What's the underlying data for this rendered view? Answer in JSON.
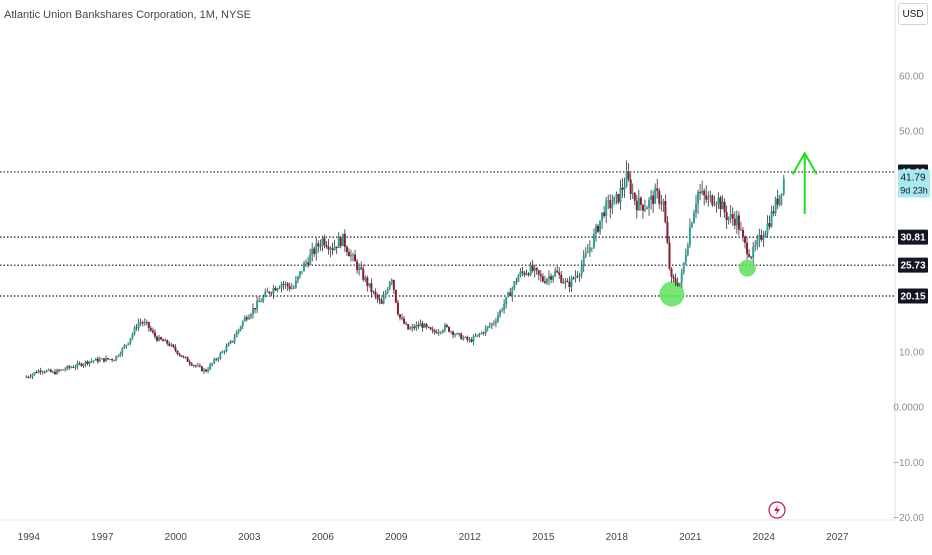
{
  "header": {
    "symbol_title": "Atlantic Union Bankshares Corporation, 1M, NYSE",
    "currency": "USD"
  },
  "chart_data": {
    "type": "candlestick",
    "title": "Atlantic Union Bankshares Corporation, 1M, NYSE",
    "x_ticks": [
      "1994",
      "1997",
      "2000",
      "2003",
      "2006",
      "2009",
      "2012",
      "2015",
      "2018",
      "2021",
      "2024",
      "2027"
    ],
    "x_range": [
      1993.0,
      2029.5
    ],
    "y_ticks": [
      60.0,
      50.0,
      10.0,
      0.0,
      -10.0,
      -20.0
    ],
    "y_tick_labels": [
      "60.00",
      "50.00",
      "10.00",
      "0.0000",
      "−10.00",
      "−20.00"
    ],
    "y_range": [
      -20.5,
      70.0
    ],
    "y_scale": "linear",
    "grid": false,
    "up_color": "#26a69a",
    "down_color": "#8b1a2b",
    "wick_color": "#333333",
    "key_levels": [
      {
        "label": "42.62",
        "value": 42.62
      },
      {
        "label": "30.81",
        "value": 30.81
      },
      {
        "label": "25.73",
        "value": 25.73
      },
      {
        "label": "20.15",
        "value": 20.15
      }
    ],
    "current_price": {
      "label": "41.79",
      "value": 41.79,
      "countdown": "9d 23h"
    },
    "highlight_circles": [
      {
        "x": 2020.25,
        "y": 20.5,
        "color": "#5de25d"
      },
      {
        "x": 2023.33,
        "y": 25.2,
        "color": "#5de25d"
      }
    ],
    "annotation_arrow": {
      "x": 2025.67,
      "from_y": 35.0,
      "to_y": 46.0,
      "color": "#22dd22"
    },
    "price_path": [
      {
        "x": 1993.9,
        "y": 5.5
      },
      {
        "x": 1994.5,
        "y": 6.8
      },
      {
        "x": 1995.0,
        "y": 6.2
      },
      {
        "x": 1995.5,
        "y": 7.0
      },
      {
        "x": 1996.0,
        "y": 7.6
      },
      {
        "x": 1996.5,
        "y": 8.4
      },
      {
        "x": 1997.0,
        "y": 8.6
      },
      {
        "x": 1997.5,
        "y": 8.8
      },
      {
        "x": 1998.0,
        "y": 11.5
      },
      {
        "x": 1998.5,
        "y": 15.5
      },
      {
        "x": 1998.8,
        "y": 15.0
      },
      {
        "x": 1999.2,
        "y": 12.5
      },
      {
        "x": 1999.7,
        "y": 11.5
      },
      {
        "x": 2000.3,
        "y": 9.0
      },
      {
        "x": 2000.8,
        "y": 7.5
      },
      {
        "x": 2001.2,
        "y": 6.5
      },
      {
        "x": 2001.8,
        "y": 9.5
      },
      {
        "x": 2002.3,
        "y": 12.0
      },
      {
        "x": 2002.8,
        "y": 16.0
      },
      {
        "x": 2003.3,
        "y": 18.5
      },
      {
        "x": 2003.8,
        "y": 21.0
      },
      {
        "x": 2004.3,
        "y": 22.5
      },
      {
        "x": 2004.8,
        "y": 21.5
      },
      {
        "x": 2005.2,
        "y": 25.5
      },
      {
        "x": 2005.6,
        "y": 28.0
      },
      {
        "x": 2006.0,
        "y": 30.5
      },
      {
        "x": 2006.4,
        "y": 29.0
      },
      {
        "x": 2006.8,
        "y": 30.5
      },
      {
        "x": 2007.2,
        "y": 27.0
      },
      {
        "x": 2007.6,
        "y": 24.0
      },
      {
        "x": 2008.0,
        "y": 21.0
      },
      {
        "x": 2008.4,
        "y": 18.5
      },
      {
        "x": 2008.8,
        "y": 24.0
      },
      {
        "x": 2009.1,
        "y": 16.5
      },
      {
        "x": 2009.5,
        "y": 14.0
      },
      {
        "x": 2010.0,
        "y": 15.0
      },
      {
        "x": 2010.5,
        "y": 13.5
      },
      {
        "x": 2011.0,
        "y": 14.5
      },
      {
        "x": 2011.5,
        "y": 13.0
      },
      {
        "x": 2012.0,
        "y": 12.0
      },
      {
        "x": 2012.5,
        "y": 13.5
      },
      {
        "x": 2013.0,
        "y": 15.5
      },
      {
        "x": 2013.5,
        "y": 19.5
      },
      {
        "x": 2014.0,
        "y": 24.0
      },
      {
        "x": 2014.5,
        "y": 25.0
      },
      {
        "x": 2015.0,
        "y": 23.0
      },
      {
        "x": 2015.5,
        "y": 24.5
      },
      {
        "x": 2016.0,
        "y": 22.0
      },
      {
        "x": 2016.5,
        "y": 25.0
      },
      {
        "x": 2017.0,
        "y": 30.0
      },
      {
        "x": 2017.5,
        "y": 36.0
      },
      {
        "x": 2018.0,
        "y": 37.5
      },
      {
        "x": 2018.4,
        "y": 41.5
      },
      {
        "x": 2018.8,
        "y": 37.0
      },
      {
        "x": 2019.2,
        "y": 36.5
      },
      {
        "x": 2019.6,
        "y": 38.5
      },
      {
        "x": 2019.9,
        "y": 37.0
      },
      {
        "x": 2020.2,
        "y": 23.0
      },
      {
        "x": 2020.6,
        "y": 22.5
      },
      {
        "x": 2021.0,
        "y": 33.0
      },
      {
        "x": 2021.3,
        "y": 39.0
      },
      {
        "x": 2021.7,
        "y": 37.5
      },
      {
        "x": 2022.1,
        "y": 38.0
      },
      {
        "x": 2022.5,
        "y": 34.5
      },
      {
        "x": 2022.9,
        "y": 34.0
      },
      {
        "x": 2023.2,
        "y": 29.5
      },
      {
        "x": 2023.5,
        "y": 27.5
      },
      {
        "x": 2023.9,
        "y": 31.0
      },
      {
        "x": 2024.2,
        "y": 33.5
      },
      {
        "x": 2024.6,
        "y": 38.0
      },
      {
        "x": 2024.85,
        "y": 41.79
      }
    ]
  }
}
